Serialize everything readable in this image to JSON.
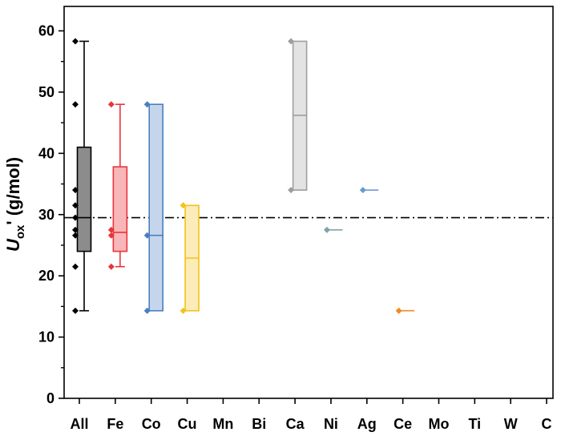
{
  "chart_data": {
    "type": "box",
    "ylabel": {
      "main": "U",
      "sub": "ox",
      "suffix": "' (g/mol)"
    },
    "ylim": [
      0,
      63
    ],
    "yticks": [
      0,
      10,
      20,
      30,
      40,
      50,
      60
    ],
    "reference_line": 29.5,
    "categories": [
      "All",
      "Fe",
      "Co",
      "Cu",
      "Mn",
      "Bi",
      "Ca",
      "Ni",
      "Ag",
      "Ce",
      "Mo",
      "Ti",
      "W",
      "C"
    ],
    "groups": [
      {
        "category": "All",
        "color": "#000000",
        "fill": "#8c8c8c",
        "q1": 24,
        "median": 29.5,
        "q3": 41,
        "whisker_low": 14.3,
        "whisker_high": 58.3,
        "points": [
          58.3,
          48,
          34,
          31.5,
          29.5,
          27.5,
          26.6,
          21.5,
          14.3
        ]
      },
      {
        "category": "Fe",
        "color": "#e8353b",
        "fill": "#f9b6b8",
        "q1": 24,
        "median": 27.1,
        "q3": 37.8,
        "whisker_low": 21.5,
        "whisker_high": 48,
        "points": [
          48,
          27.5,
          26.6,
          21.5
        ]
      },
      {
        "category": "Co",
        "color": "#4a7fc1",
        "fill": "#c5d6ec",
        "q1": 14.3,
        "median": 26.6,
        "q3": 48,
        "whisker_low": null,
        "whisker_high": null,
        "points": [
          48,
          26.6,
          14.3
        ]
      },
      {
        "category": "Cu",
        "color": "#f3c21d",
        "fill": "#fbecb8",
        "q1": 14.3,
        "median": 22.9,
        "q3": 31.5,
        "whisker_low": null,
        "whisker_high": null,
        "points": [
          31.5,
          14.3
        ]
      },
      {
        "category": "Ca",
        "color": "#9e9e9e",
        "fill": "#e3e3e3",
        "q1": 34,
        "median": 46.2,
        "q3": 58.3,
        "whisker_low": null,
        "whisker_high": null,
        "points": [
          58.3,
          34
        ]
      },
      {
        "category": "Ni",
        "color": "#7fa3a8",
        "fill": "#7fa3a8",
        "q1": null,
        "median": 27.5,
        "q3": null,
        "whisker_low": null,
        "whisker_high": null,
        "points": [
          27.5
        ]
      },
      {
        "category": "Ag",
        "color": "#6b9bd1",
        "fill": "#6b9bd1",
        "q1": null,
        "median": 34,
        "q3": null,
        "whisker_low": null,
        "whisker_high": null,
        "points": [
          34
        ]
      },
      {
        "category": "Ce",
        "color": "#f08a24",
        "fill": "#f08a24",
        "q1": null,
        "median": 14.3,
        "q3": null,
        "whisker_low": null,
        "whisker_high": null,
        "points": [
          14.3
        ]
      }
    ]
  }
}
